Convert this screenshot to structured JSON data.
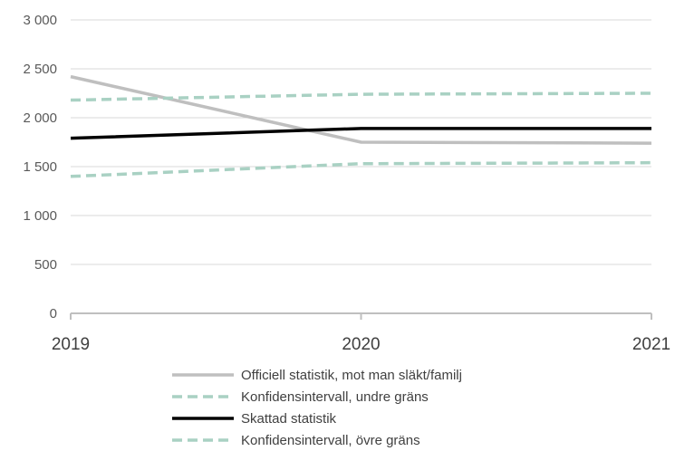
{
  "chart_data": {
    "type": "line",
    "title": "",
    "xlabel": "",
    "ylabel": "",
    "x": [
      "2019",
      "2020",
      "2021"
    ],
    "ylim": [
      0,
      3000
    ],
    "yticks": [
      0,
      500,
      1000,
      1500,
      2000,
      2500,
      3000
    ],
    "ytick_labels": [
      "0",
      "500",
      "1 000",
      "1 500",
      "2 000",
      "2 500",
      "3 000"
    ],
    "grid": true,
    "legend_position": "bottom",
    "series": [
      {
        "name": "Officiell statistik, mot man släkt/familj",
        "values": [
          2420,
          1750,
          1740
        ],
        "color": "#bfbfbf",
        "dash": "solid"
      },
      {
        "name": "Konfidensintervall, undre gräns",
        "values": [
          2180,
          2240,
          2250
        ],
        "color": "#a9d1c3",
        "dash": "dashed"
      },
      {
        "name": "Skattad statistik",
        "values": [
          1790,
          1890,
          1890
        ],
        "color": "#000000",
        "dash": "solid"
      },
      {
        "name": "Konfidensintervall, övre gräns",
        "values": [
          1400,
          1530,
          1540
        ],
        "color": "#a9d1c3",
        "dash": "dashed"
      }
    ]
  }
}
